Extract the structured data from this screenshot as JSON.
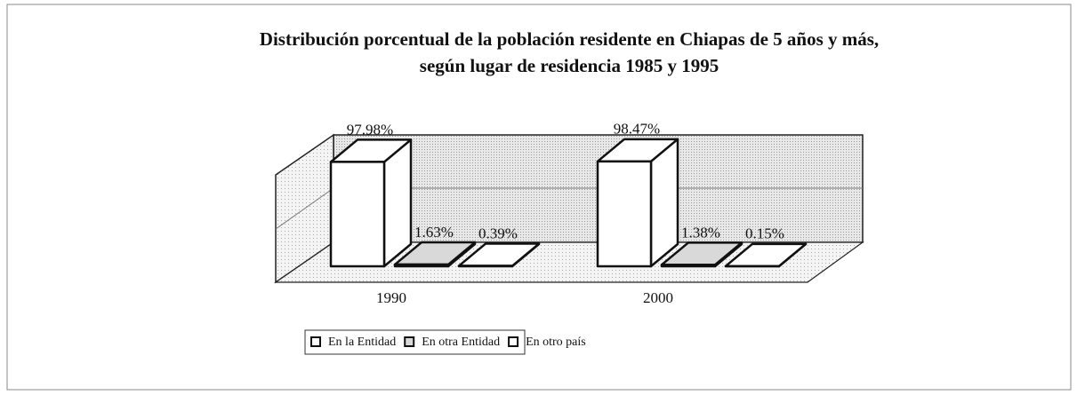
{
  "chart_data": {
    "type": "bar3d",
    "title": "Distribución porcentual de la población residente  en Chiapas de 5 años y más,",
    "subtitle": "según lugar de residencia 1985 y 1995",
    "categories": [
      "1990",
      "2000"
    ],
    "ylim": [
      0,
      100
    ],
    "series": [
      {
        "name": "En la Entidad",
        "color": "#ffffff",
        "values": [
          97.98,
          98.47
        ],
        "value_labels": [
          "97.98%",
          "98.47%"
        ]
      },
      {
        "name": "En otra Entidad",
        "color": "#d9d9d9",
        "values": [
          1.63,
          1.38
        ],
        "value_labels": [
          "1.63%",
          "1.38%"
        ]
      },
      {
        "name": "En otro país",
        "color": "#ffffff",
        "values": [
          0.39,
          0.15
        ],
        "value_labels": [
          "0.39%",
          "0.15%"
        ]
      }
    ]
  }
}
